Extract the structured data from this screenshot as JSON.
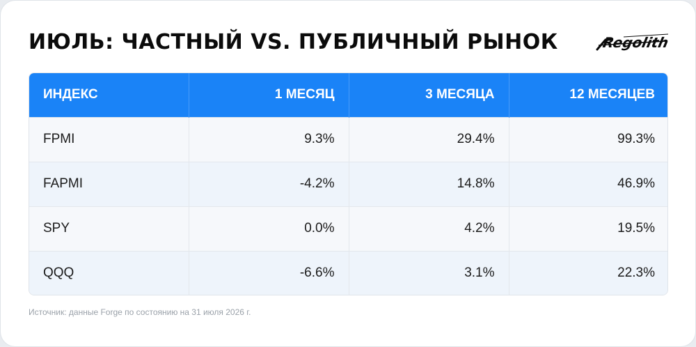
{
  "title": "ИЮЛЬ: ЧАСТНЫЙ VS. ПУБЛИЧНЫЙ РЫНОК",
  "logo_text": "Regolith",
  "chart_data": {
    "type": "table",
    "columns": [
      "ИНДЕКС",
      "1 МЕСЯЦ",
      "3 МЕСЯЦА",
      "12 МЕСЯЦЕВ"
    ],
    "rows": [
      [
        "FPMI",
        "9.3%",
        "29.4%",
        "99.3%"
      ],
      [
        "FAPMI",
        "-4.2%",
        "14.8%",
        "46.9%"
      ],
      [
        "SPY",
        "0.0%",
        "4.2%",
        "19.5%"
      ],
      [
        "QQQ",
        "-6.6%",
        "3.1%",
        "22.3%"
      ]
    ]
  },
  "source": "Источник: данные Forge по состоянию на 31 июля 2026 г.",
  "colors": {
    "header_bg": "#1a83f7",
    "header_text": "#ffffff",
    "row_odd": "#f6f8fb",
    "row_even": "#eef4fb",
    "title_text": "#0b0b0b"
  }
}
